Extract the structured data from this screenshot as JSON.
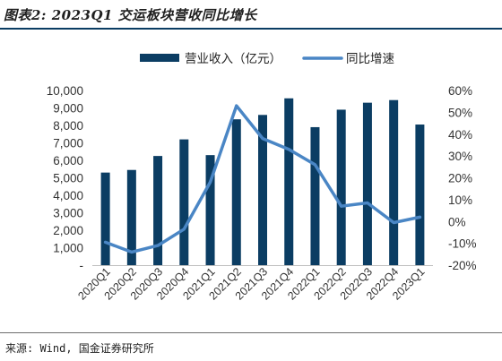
{
  "header": {
    "title": "图表2: 2023Q1 交运板块营收同比增长"
  },
  "footer": {
    "source": "来源: Wind, 国金证券研究所"
  },
  "colors": {
    "bar": "#0b3d63",
    "line": "#4a86c5",
    "rule": "#0b3d63"
  },
  "chart_data": {
    "type": "bar",
    "categories": [
      "2020Q1",
      "2020Q2",
      "2020Q3",
      "2020Q4",
      "2021Q1",
      "2021Q2",
      "2021Q3",
      "2021Q4",
      "2022Q1",
      "2022Q2",
      "2022Q3",
      "2022Q4",
      "2023Q1"
    ],
    "series": [
      {
        "name": "营业收入（亿元）",
        "type": "bar",
        "axis": "left",
        "values": [
          5300,
          5450,
          6250,
          7200,
          6300,
          8350,
          8600,
          9550,
          7900,
          8900,
          9300,
          9450,
          8050
        ]
      },
      {
        "name": "同比增速",
        "type": "line",
        "axis": "right",
        "values": [
          -9.5,
          -14,
          -11,
          -3.5,
          18,
          53,
          38,
          33,
          26,
          7,
          8.5,
          -0.5,
          2
        ]
      }
    ],
    "left_axis": {
      "ylim": [
        0,
        10000
      ],
      "ticks": [
        "-",
        "1,000",
        "2,000",
        "3,000",
        "4,000",
        "5,000",
        "6,000",
        "7,000",
        "8,000",
        "9,000",
        "10,000"
      ]
    },
    "right_axis": {
      "ylim": [
        -20,
        60
      ],
      "ticks": [
        "-20%",
        "-10%",
        "0%",
        "10%",
        "20%",
        "30%",
        "40%",
        "50%",
        "60%"
      ]
    },
    "legend_position": "top-center",
    "grid": false
  }
}
